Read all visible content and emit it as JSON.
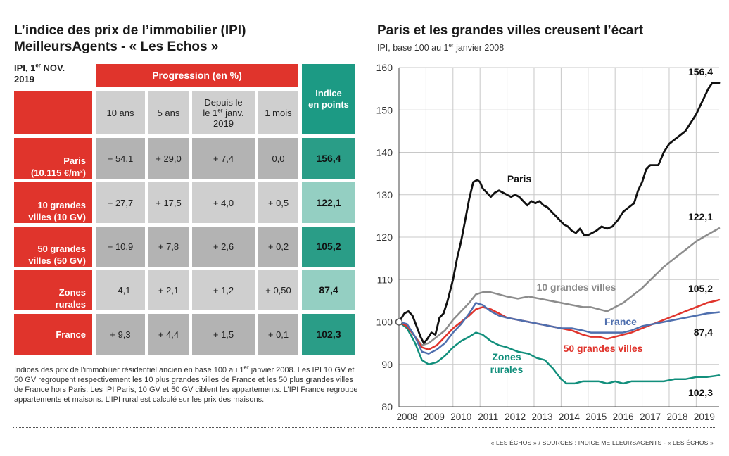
{
  "table": {
    "title_line1": "L’indice des prix de l’immobilier (IPI)",
    "title_line2": "MeilleursAgents - « Les Echos »",
    "ipi_label_line1": "IPI, 1",
    "ipi_label_sup": "er",
    "ipi_label_line1_end": " NOV.",
    "ipi_label_line2": "2019",
    "progression_header": "Progression (en %)",
    "indice_header_line1": "Indice",
    "indice_header_line2": "en points",
    "col_10ans": "10 ans",
    "col_5ans": "5 ans",
    "col_depuis_1": "Depuis le",
    "col_depuis_2a": "le 1",
    "col_depuis_2sup": "er",
    "col_depuis_2b": " janv.",
    "col_depuis_3": "2019",
    "col_1mois": "1 mois",
    "rows": [
      {
        "label1": "Paris",
        "label2": "(10.115 €/m²)",
        "v10": "+ 54,1",
        "v5": "+ 29,0",
        "vdep": "+ 7,4",
        "v1m": "0,0",
        "indice": "156,4"
      },
      {
        "label1": "10 grandes",
        "label2": "villes (10 GV)",
        "v10": "+ 27,7",
        "v5": "+ 17,5",
        "vdep": "+ 4,0",
        "v1m": "+ 0,5",
        "indice": "122,1"
      },
      {
        "label1": "50 grandes",
        "label2": "villes (50 GV)",
        "v10": "+ 10,9",
        "v5": "+ 7,8",
        "vdep": "+ 2,6",
        "v1m": "+ 0,2",
        "indice": "105,2"
      },
      {
        "label1": "Zones",
        "label2": "rurales",
        "v10": "– 4,1",
        "v5": "+ 2,1",
        "vdep": "+ 1,2",
        "v1m": "+ 0,50",
        "indice": "87,4"
      },
      {
        "label1": "France",
        "label2": "",
        "v10": "+ 9,3",
        "v5": "+ 4,4",
        "vdep": "+ 1,5",
        "v1m": "+ 0,1",
        "indice": "102,3"
      }
    ],
    "notes_a": "Indices des prix de l’immobilier résidentiel ancien en base 100 au 1",
    "notes_sup": "er",
    "notes_b": " janvier 2008. Les IPI 10 GV et 50 GV regroupent respectivement les 10 plus grandes villes de France et les 50 plus grandes villes de France hors Paris. Les IPI Paris, 10 GV et 50 GV ciblent les appartements. L’IPI France regroupe appartements et maisons. L’IPI rural est calculé sur les prix des maisons."
  },
  "chart_title": "Paris et les grandes villes creusent l’écart",
  "chart_subtitle_a": "IPI, base 100 au 1",
  "chart_subtitle_sup": "er",
  "chart_subtitle_b": " janvier 2008",
  "footer": "« LES ÉCHOS » / SOURCES : INDICE MEILLEURSAGENTS - « LES ÉCHOS »",
  "chart_data": {
    "type": "line",
    "title": "Paris et les grandes villes creusent l’écart",
    "subtitle": "IPI, base 100 au 1er janvier 2008",
    "xlabel": "",
    "ylabel": "",
    "xlim": [
      2008.0,
      2019.85
    ],
    "ylim": [
      80,
      160
    ],
    "yticks": [
      80,
      90,
      100,
      110,
      120,
      130,
      140,
      150,
      160
    ],
    "xtick_labels": [
      "2008",
      "2009",
      "2010",
      "2011",
      "2012",
      "2013",
      "2014",
      "2015",
      "2016",
      "2017",
      "2018",
      "2019"
    ],
    "grid": true,
    "series": [
      {
        "name": "Paris",
        "color": "#111111",
        "end_label": "156,4",
        "x": [
          2008.0,
          2008.2,
          2008.35,
          2008.5,
          2008.65,
          2008.8,
          2008.92,
          2009.05,
          2009.2,
          2009.35,
          2009.5,
          2009.65,
          2009.8,
          2010.0,
          2010.15,
          2010.3,
          2010.45,
          2010.6,
          2010.75,
          2010.9,
          2011.0,
          2011.1,
          2011.25,
          2011.4,
          2011.55,
          2011.7,
          2011.85,
          2012.0,
          2012.15,
          2012.3,
          2012.45,
          2012.6,
          2012.75,
          2012.9,
          2013.05,
          2013.2,
          2013.35,
          2013.5,
          2013.65,
          2013.8,
          2013.95,
          2014.1,
          2014.25,
          2014.4,
          2014.55,
          2014.7,
          2014.85,
          2015.0,
          2015.15,
          2015.3,
          2015.5,
          2015.7,
          2015.9,
          2016.1,
          2016.3,
          2016.5,
          2016.7,
          2016.85,
          2017.0,
          2017.15,
          2017.3,
          2017.45,
          2017.6,
          2017.8,
          2018.0,
          2018.2,
          2018.4,
          2018.6,
          2018.8,
          2019.0,
          2019.15,
          2019.3,
          2019.45,
          2019.6,
          2019.75,
          2019.85
        ],
        "y": [
          100,
          102,
          102.5,
          101.5,
          99,
          96.5,
          95,
          96,
          97.5,
          97,
          101,
          102,
          105,
          110,
          115,
          119,
          124,
          129,
          133,
          133.5,
          133,
          131.5,
          130.5,
          129.5,
          130.5,
          131,
          130.5,
          130,
          129.5,
          130,
          129.5,
          128.5,
          127.5,
          128.5,
          128,
          128.5,
          127.5,
          127,
          126,
          125,
          124,
          123,
          122.5,
          121.5,
          121,
          122,
          120.5,
          120.5,
          121,
          121.5,
          122.5,
          122,
          122.5,
          124,
          126,
          127,
          128,
          131,
          133,
          136,
          137,
          137,
          137,
          140,
          142,
          143,
          144,
          145,
          147,
          149,
          151,
          153,
          155,
          156.4,
          156.4,
          156.4
        ]
      },
      {
        "name": "10 grandes villes",
        "color": "#8c8c8c",
        "end_label": "122,1",
        "x": [
          2008.0,
          2008.3,
          2008.6,
          2008.85,
          2009.1,
          2009.4,
          2009.7,
          2010.0,
          2010.3,
          2010.6,
          2010.85,
          2011.1,
          2011.4,
          2011.7,
          2012.0,
          2012.4,
          2012.8,
          2013.2,
          2013.6,
          2014.0,
          2014.4,
          2014.8,
          2015.1,
          2015.4,
          2015.7,
          2016.0,
          2016.3,
          2016.6,
          2017.0,
          2017.4,
          2017.8,
          2018.2,
          2018.6,
          2019.0,
          2019.4,
          2019.85
        ],
        "y": [
          100,
          99,
          96.5,
          94.5,
          95,
          96.5,
          98,
          100.5,
          102.5,
          104.5,
          106.5,
          107,
          107,
          106.5,
          106,
          105.5,
          106,
          105.5,
          105,
          104.5,
          104,
          103.5,
          103.5,
          103,
          102.5,
          103.5,
          104.5,
          106,
          108,
          110.5,
          113,
          115,
          117,
          119,
          120.5,
          122.1
        ]
      },
      {
        "name": "50 grandes villes",
        "color": "#e0342c",
        "end_label": "105,2",
        "x": [
          2008.0,
          2008.3,
          2008.6,
          2008.85,
          2009.1,
          2009.4,
          2009.7,
          2010.0,
          2010.3,
          2010.6,
          2010.85,
          2011.1,
          2011.4,
          2011.7,
          2012.0,
          2012.4,
          2012.8,
          2013.2,
          2013.6,
          2014.0,
          2014.4,
          2014.8,
          2015.1,
          2015.4,
          2015.7,
          2016.0,
          2016.3,
          2016.6,
          2017.0,
          2017.4,
          2017.8,
          2018.2,
          2018.6,
          2019.0,
          2019.4,
          2019.85
        ],
        "y": [
          100,
          99,
          96.5,
          94,
          93.5,
          94.5,
          96.5,
          98.5,
          100,
          101.5,
          103,
          103.5,
          103,
          102,
          101,
          100.5,
          100,
          99.5,
          99,
          98.5,
          98,
          97,
          96.5,
          96.5,
          96,
          96.5,
          97,
          97.5,
          98.5,
          99.5,
          100.5,
          101.5,
          102.5,
          103.5,
          104.5,
          105.2
        ]
      },
      {
        "name": "France",
        "color": "#4f6fae",
        "end_label": "102,3",
        "x": [
          2008.0,
          2008.3,
          2008.6,
          2008.85,
          2009.1,
          2009.4,
          2009.7,
          2010.0,
          2010.3,
          2010.6,
          2010.85,
          2011.1,
          2011.4,
          2011.7,
          2012.0,
          2012.4,
          2012.8,
          2013.2,
          2013.6,
          2014.0,
          2014.4,
          2014.8,
          2015.1,
          2015.4,
          2015.7,
          2016.0,
          2016.3,
          2016.6,
          2017.0,
          2017.4,
          2017.8,
          2018.2,
          2018.6,
          2019.0,
          2019.4,
          2019.85
        ],
        "y": [
          100,
          99.5,
          96.5,
          93,
          92.5,
          93.5,
          95,
          97.5,
          99.5,
          102,
          104.5,
          104,
          102.5,
          101.5,
          101,
          100.5,
          100,
          99.5,
          99,
          98.5,
          98.5,
          98,
          97.5,
          97.5,
          97.5,
          97.5,
          97.5,
          98,
          99,
          99.5,
          100,
          100.5,
          101,
          101.5,
          102,
          102.3
        ]
      },
      {
        "name": "Zones rurales",
        "color": "#128f7c",
        "end_label": "87,4",
        "x": [
          2008.0,
          2008.3,
          2008.6,
          2008.85,
          2009.1,
          2009.4,
          2009.7,
          2010.0,
          2010.3,
          2010.6,
          2010.85,
          2011.1,
          2011.4,
          2011.7,
          2012.0,
          2012.4,
          2012.8,
          2013.1,
          2013.4,
          2013.7,
          2014.0,
          2014.2,
          2014.5,
          2014.8,
          2015.1,
          2015.4,
          2015.7,
          2016.0,
          2016.3,
          2016.6,
          2017.0,
          2017.4,
          2017.8,
          2018.2,
          2018.6,
          2019.0,
          2019.4,
          2019.85
        ],
        "y": [
          100,
          98.5,
          95,
          91,
          90,
          90.5,
          92,
          94,
          95.5,
          96.5,
          97.5,
          97,
          95.5,
          94.5,
          94,
          93,
          92.5,
          91.5,
          91,
          89,
          86.5,
          85.5,
          85.5,
          86,
          86,
          86,
          85.5,
          86,
          85.5,
          86,
          86,
          86,
          86,
          86.5,
          86.5,
          87,
          87,
          87.4
        ]
      }
    ],
    "series_labels": [
      {
        "text": "Paris",
        "color": "#111111"
      },
      {
        "text": "10 grandes villes",
        "color": "#8c8c8c"
      },
      {
        "text": "France",
        "color": "#4f6fae"
      },
      {
        "text": "50 grandes villes",
        "color": "#e0342c"
      },
      {
        "text": "Zones",
        "color": "#128f7c"
      },
      {
        "text": "rurales",
        "color": "#128f7c"
      }
    ]
  }
}
